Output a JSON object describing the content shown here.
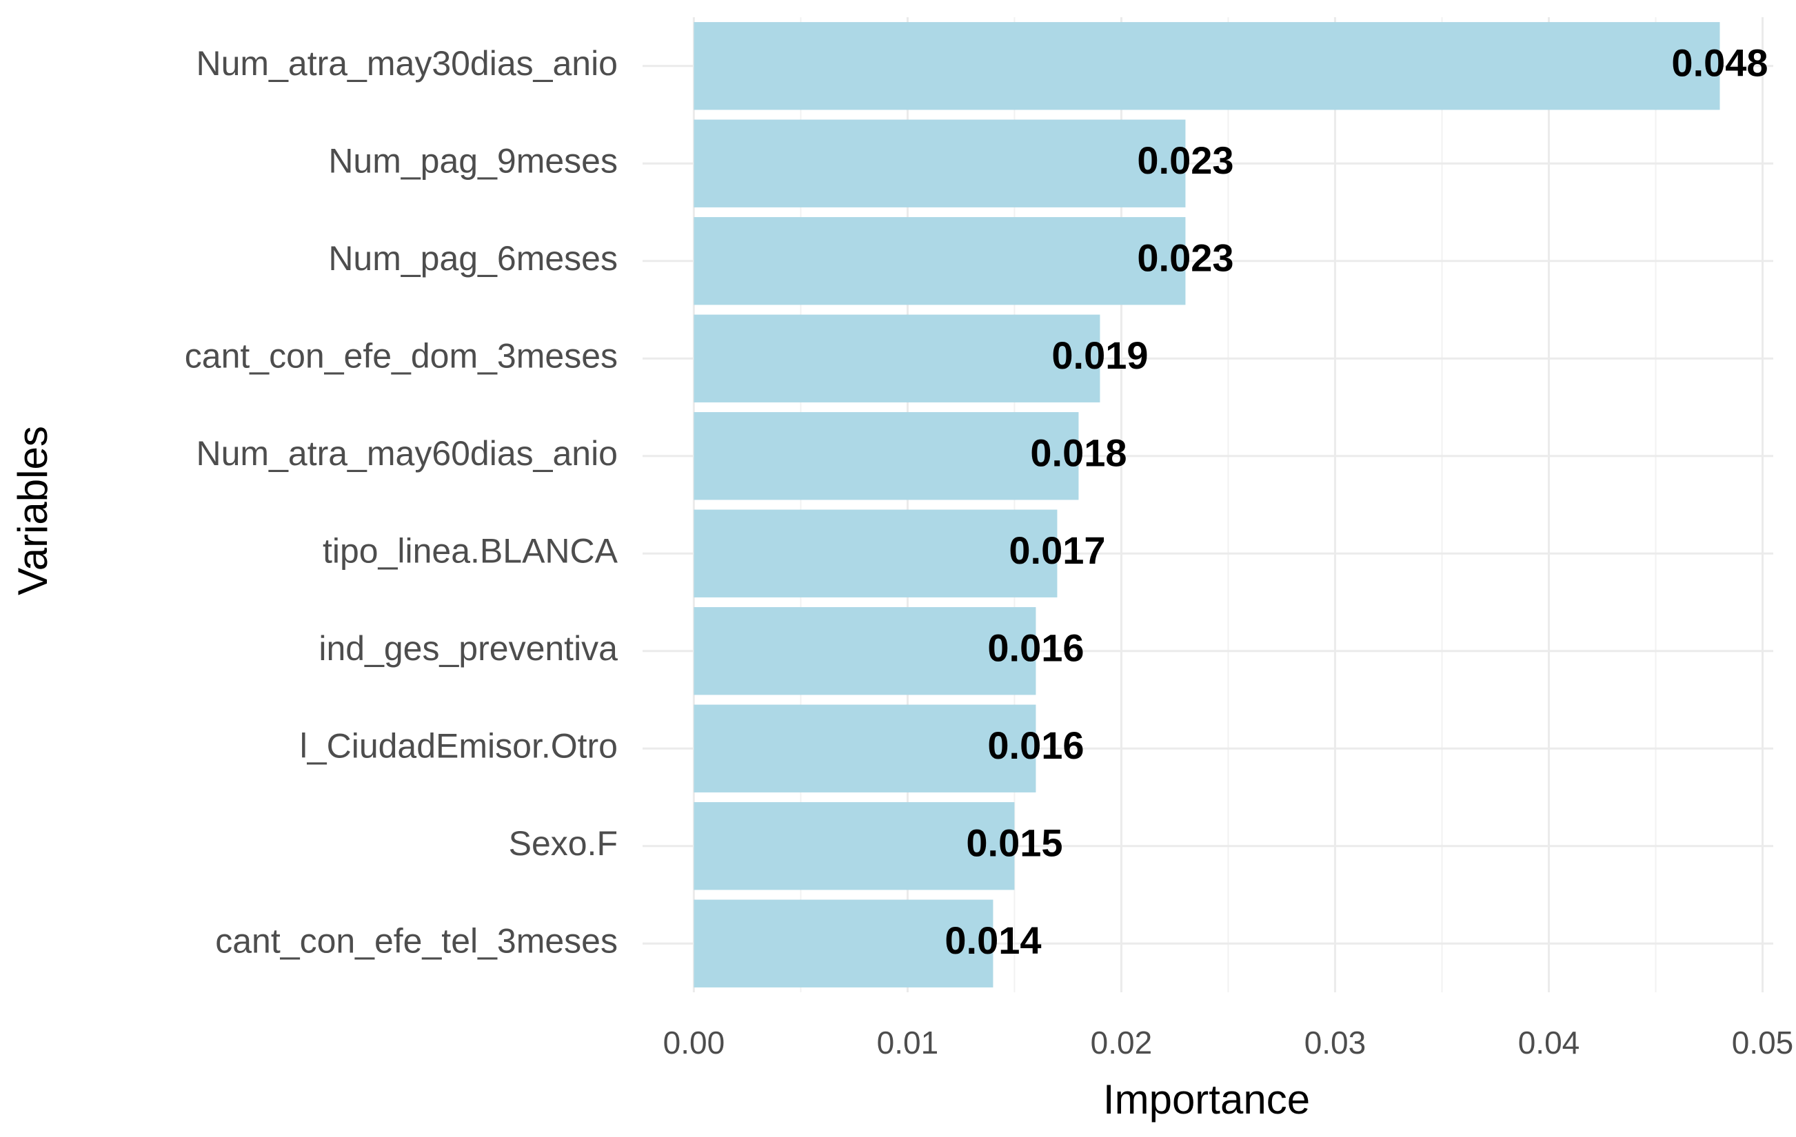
{
  "chart_data": {
    "type": "bar",
    "orientation": "horizontal",
    "categories": [
      "Num_atra_may30dias_anio",
      "Num_pag_9meses",
      "Num_pag_6meses",
      "cant_con_efe_dom_3meses",
      "Num_atra_may60dias_anio",
      "tipo_linea.BLANCA",
      "ind_ges_preventiva",
      "l_CiudadEmisor.Otro",
      "Sexo.F",
      "cant_con_efe_tel_3meses"
    ],
    "values": [
      0.048,
      0.023,
      0.023,
      0.019,
      0.018,
      0.017,
      0.016,
      0.016,
      0.015,
      0.014
    ],
    "color": "#add8e6",
    "x_label": "Importance",
    "y_label": "Variables",
    "xlim": [
      -0.0024,
      0.0505
    ],
    "xticks": [
      {
        "value": 0,
        "label": "0.00"
      },
      {
        "value": 0.01,
        "label": "0.01"
      },
      {
        "value": 0.02,
        "label": "0.02"
      },
      {
        "value": 0.03,
        "label": "0.03"
      },
      {
        "value": 0.04,
        "label": "0.04"
      },
      {
        "value": 0.05,
        "label": "0.05"
      }
    ],
    "grid": true
  }
}
